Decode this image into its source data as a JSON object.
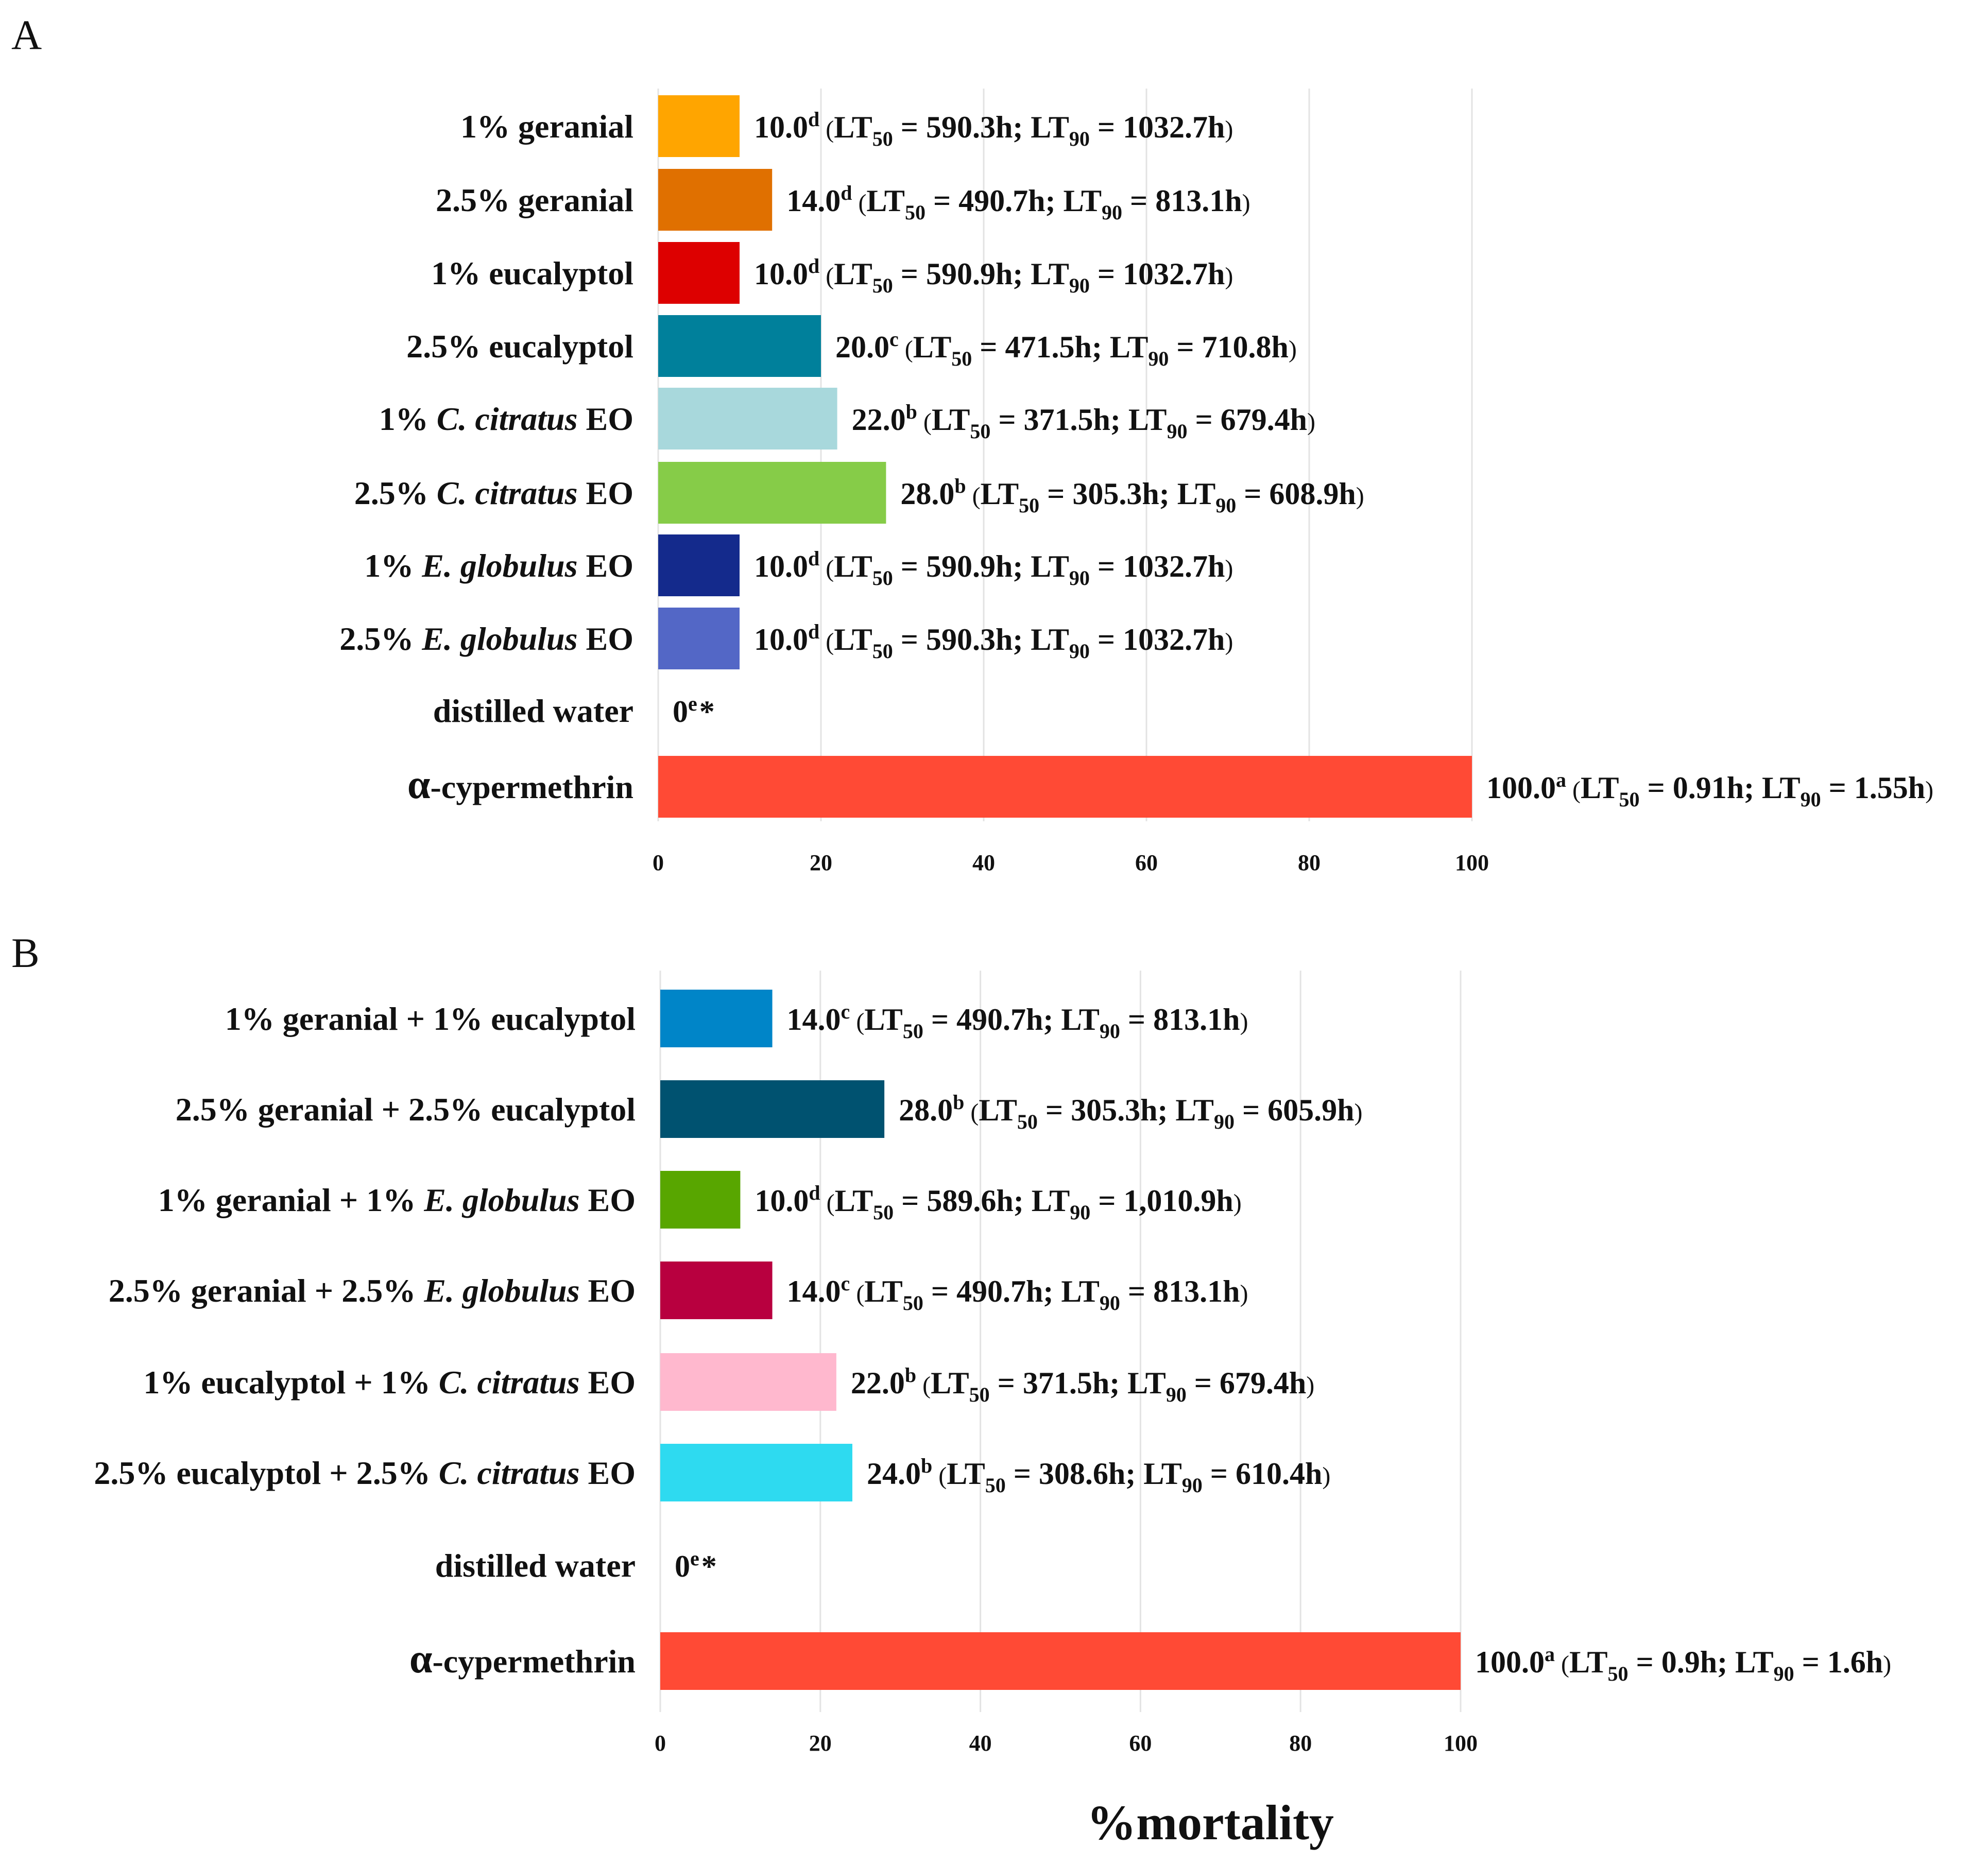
{
  "figure": {
    "xlabel": "%mortality"
  },
  "chart_data": [
    {
      "panel": "A",
      "type": "bar",
      "orientation": "horizontal",
      "xlim": [
        0,
        100
      ],
      "ticks": [
        0,
        20,
        40,
        60,
        80,
        100
      ],
      "grid": true,
      "bars": [
        {
          "segments": [
            {
              "t": "1% geranial"
            }
          ],
          "value": 10.0,
          "letter": "d",
          "lt50": "590.3h",
          "lt90": "1032.7h",
          "display": "10.0",
          "color": "#ffa500"
        },
        {
          "segments": [
            {
              "t": "2.5% geranial"
            }
          ],
          "value": 14.0,
          "letter": "d",
          "lt50": "490.7h",
          "lt90": "813.1h",
          "display": "14.0",
          "color": "#e07000"
        },
        {
          "segments": [
            {
              "t": "1% eucalyptol"
            }
          ],
          "value": 10.0,
          "letter": "d",
          "lt50": "590.9h",
          "lt90": "1032.7h",
          "display": "10.0",
          "color": "#dd0000"
        },
        {
          "segments": [
            {
              "t": "2.5% eucalyptol"
            }
          ],
          "value": 20.0,
          "letter": "c",
          "lt50": "471.5h",
          "lt90": "710.8h",
          "display": "20.0",
          "color": "#00809b"
        },
        {
          "segments": [
            {
              "t": "1% "
            },
            {
              "t": "C. citratus",
              "i": true
            },
            {
              "t": " EO"
            }
          ],
          "value": 22.0,
          "letter": "b",
          "lt50": "371.5h",
          "lt90": "679.4h",
          "display": "22.0",
          "color": "#a8d8dc"
        },
        {
          "segments": [
            {
              "t": "2.5% "
            },
            {
              "t": "C. citratus",
              "i": true
            },
            {
              "t": " EO"
            }
          ],
          "value": 28.0,
          "letter": "b",
          "lt50": "305.3h",
          "lt90": "608.9h",
          "display": "28.0",
          "color": "#86cc48"
        },
        {
          "segments": [
            {
              "t": "1% "
            },
            {
              "t": "E. globulus",
              "i": true
            },
            {
              "t": " EO"
            }
          ],
          "value": 10.0,
          "letter": "d",
          "lt50": "590.9h",
          "lt90": "1032.7h",
          "display": "10.0",
          "color": "#142a8c"
        },
        {
          "segments": [
            {
              "t": "2.5% "
            },
            {
              "t": "E. globulus",
              "i": true
            },
            {
              "t": " EO"
            }
          ],
          "value": 10.0,
          "letter": "d",
          "lt50": "590.3h",
          "lt90": "1032.7h",
          "display": "10.0",
          "color": "#5367c6"
        },
        {
          "segments": [
            {
              "t": "distilled water"
            }
          ],
          "value": 0,
          "letter": "e",
          "star": "*",
          "display": "0",
          "color": "#ffffff"
        },
        {
          "segments": [
            {
              "t": "α",
              "g": true
            },
            {
              "t": "-cypermethrin"
            }
          ],
          "value": 100.0,
          "letter": "a",
          "lt50": "0.91h",
          "lt90": "1.55h",
          "display": "100.0",
          "color": "#ff4a35"
        }
      ]
    },
    {
      "panel": "B",
      "type": "bar",
      "orientation": "horizontal",
      "xlim": [
        0,
        100
      ],
      "ticks": [
        0,
        20,
        40,
        60,
        80,
        100
      ],
      "grid": true,
      "bars": [
        {
          "segments": [
            {
              "t": "1% geranial + 1% eucalyptol"
            }
          ],
          "value": 14.0,
          "letter": "c",
          "lt50": "490.7h",
          "lt90": "813.1h",
          "display": "14.0",
          "color": "#0085c8"
        },
        {
          "segments": [
            {
              "t": "2.5% geranial + 2.5% eucalyptol"
            }
          ],
          "value": 28.0,
          "letter": "b",
          "lt50": "305.3h",
          "lt90": "605.9h",
          "display": "28.0",
          "color": "#005270"
        },
        {
          "segments": [
            {
              "t": "1% geranial + 1% "
            },
            {
              "t": "E. globulus",
              "i": true
            },
            {
              "t": " EO"
            }
          ],
          "value": 10.0,
          "letter": "d",
          "lt50": "589.6h",
          "lt90": "1,010.9h",
          "display": "10.0",
          "color": "#58a600"
        },
        {
          "segments": [
            {
              "t": "2.5% geranial + 2.5% "
            },
            {
              "t": "E. globulus",
              "i": true
            },
            {
              "t": " EO"
            }
          ],
          "value": 14.0,
          "letter": "c",
          "lt50": "490.7h",
          "lt90": "813.1h",
          "display": "14.0",
          "color": "#b8003f"
        },
        {
          "segments": [
            {
              "t": "1% eucalyptol + 1% "
            },
            {
              "t": "C. citratus",
              "i": true
            },
            {
              "t": " EO"
            }
          ],
          "value": 22.0,
          "letter": "b",
          "lt50": "371.5h",
          "lt90": "679.4h",
          "display": "22.0",
          "color": "#ffb8ce"
        },
        {
          "segments": [
            {
              "t": "2.5% eucalyptol + 2.5% "
            },
            {
              "t": "C. citratus",
              "i": true
            },
            {
              "t": " EO"
            }
          ],
          "value": 24.0,
          "letter": "b",
          "lt50": "308.6h",
          "lt90": "610.4h",
          "display": "24.0",
          "color": "#2edaf0"
        },
        {
          "segments": [
            {
              "t": "distilled water"
            }
          ],
          "value": 0,
          "letter": "e",
          "star": "*",
          "display": "0",
          "color": "#ffffff"
        },
        {
          "segments": [
            {
              "t": "α",
              "g": true
            },
            {
              "t": "-cypermethrin"
            }
          ],
          "value": 100.0,
          "letter": "a",
          "lt50": "0.9h",
          "lt90": "1.6h",
          "display": "100.0",
          "color": "#ff4a35"
        }
      ]
    }
  ]
}
